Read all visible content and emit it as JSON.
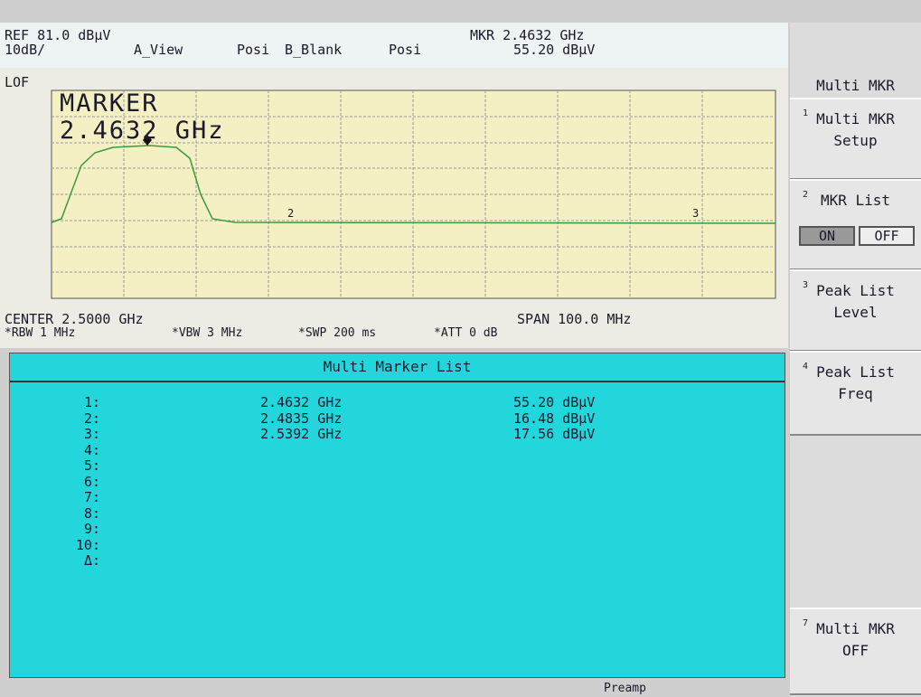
{
  "header": {
    "ref": "REF 81.0 dBµV",
    "scale": "10dB/",
    "a_view": "A_View",
    "a_mode": "Posi",
    "b_blank": "B_Blank",
    "b_mode": "Posi",
    "marker_freq": "MKR 2.4632 GHz",
    "marker_level": "55.20 dBµV"
  },
  "graph": {
    "lof": "LOF",
    "marker_title": "MARKER",
    "marker_value": "2.4632 GHz",
    "marker_labels": [
      "2",
      "3"
    ]
  },
  "footer": {
    "center": "CENTER 2.5000 GHz",
    "span": "SPAN 100.0 MHz",
    "rbw": "*RBW 1 MHz",
    "vbw": "*VBW 3 MHz",
    "swp": "*SWP 200 ms",
    "att": "*ATT 0 dB"
  },
  "marker_list": {
    "title": "Multi Marker List",
    "rows": [
      {
        "index": "1:",
        "freq": "2.4632 GHz",
        "level": "55.20 dBµV"
      },
      {
        "index": "2:",
        "freq": "2.4835 GHz",
        "level": "16.48 dBµV"
      },
      {
        "index": "3:",
        "freq": "2.5392 GHz",
        "level": "17.56 dBµV"
      },
      {
        "index": "4:"
      },
      {
        "index": "5:"
      },
      {
        "index": "6:"
      },
      {
        "index": "7:"
      },
      {
        "index": "8:"
      },
      {
        "index": "9:"
      },
      {
        "index": "10:"
      },
      {
        "index": "Δ:"
      }
    ]
  },
  "softkeys": {
    "title": "Multi MKR",
    "keys": [
      {
        "number": "1",
        "lines": [
          "Multi MKR",
          "Setup"
        ]
      },
      {
        "number": "2",
        "lines": [
          "MKR List"
        ],
        "on": "ON",
        "off": "OFF"
      },
      {
        "number": "3",
        "lines": [
          "Peak List",
          "Level"
        ]
      },
      {
        "number": "4",
        "lines": [
          "Peak List",
          "Freq"
        ]
      },
      {
        "number": "7",
        "lines": [
          "Multi MKR",
          "OFF"
        ]
      }
    ]
  },
  "status": {
    "preamp": "Preamp"
  }
}
